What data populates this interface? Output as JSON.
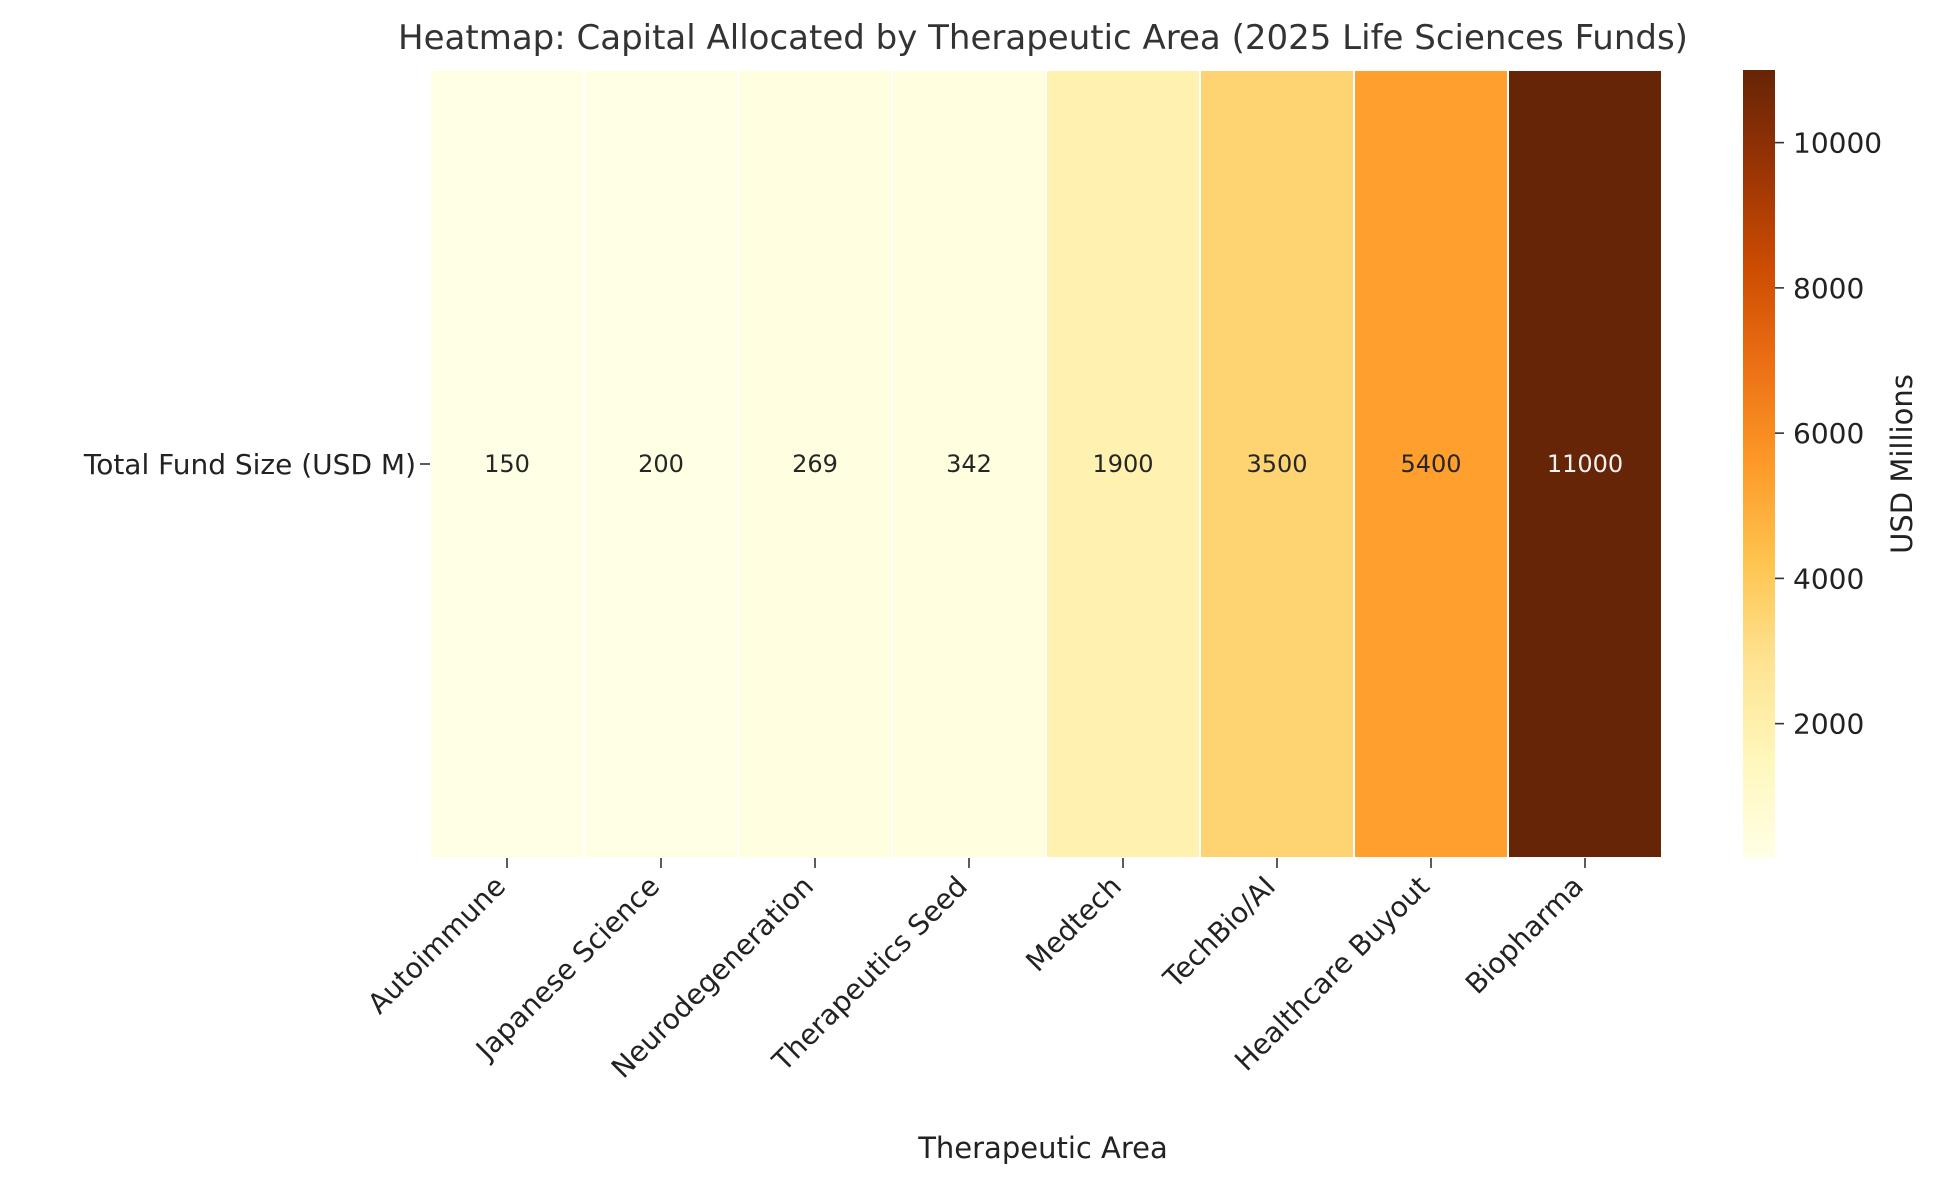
{
  "chart_data": {
    "type": "heatmap",
    "title": "Heatmap: Capital Allocated by Therapeutic Area (2025 Life Sciences Funds)",
    "xlabel": "Therapeutic Area",
    "ylabel": "",
    "rows": [
      "Total Fund Size (USD M)"
    ],
    "columns": [
      "Autoimmune",
      "Japanese Science",
      "Neurodegeneration",
      "Therapeutics Seed",
      "Medtech",
      "TechBio/AI",
      "Healthcare Buyout",
      "Biopharma"
    ],
    "values": [
      [
        150,
        200,
        269,
        342,
        1900,
        3500,
        5400,
        11000
      ]
    ],
    "value_labels": [
      "150",
      "200",
      "269",
      "342",
      "1900",
      "3500",
      "5400",
      "11000"
    ],
    "colorbar": {
      "label": "USD Millions",
      "range": [
        150,
        11000
      ],
      "ticks": [
        2000,
        4000,
        6000,
        8000,
        10000
      ],
      "tick_labels": [
        "2000",
        "4000",
        "6000",
        "8000",
        "10000"
      ],
      "colormap": "YlOrBr",
      "colors": [
        "#ffffe5",
        "#fff7bc",
        "#fee391",
        "#fec44f",
        "#fe9929",
        "#ec7014",
        "#cc4c02",
        "#993404",
        "#662506"
      ]
    },
    "grid": false,
    "legend": "colorbar-right"
  }
}
